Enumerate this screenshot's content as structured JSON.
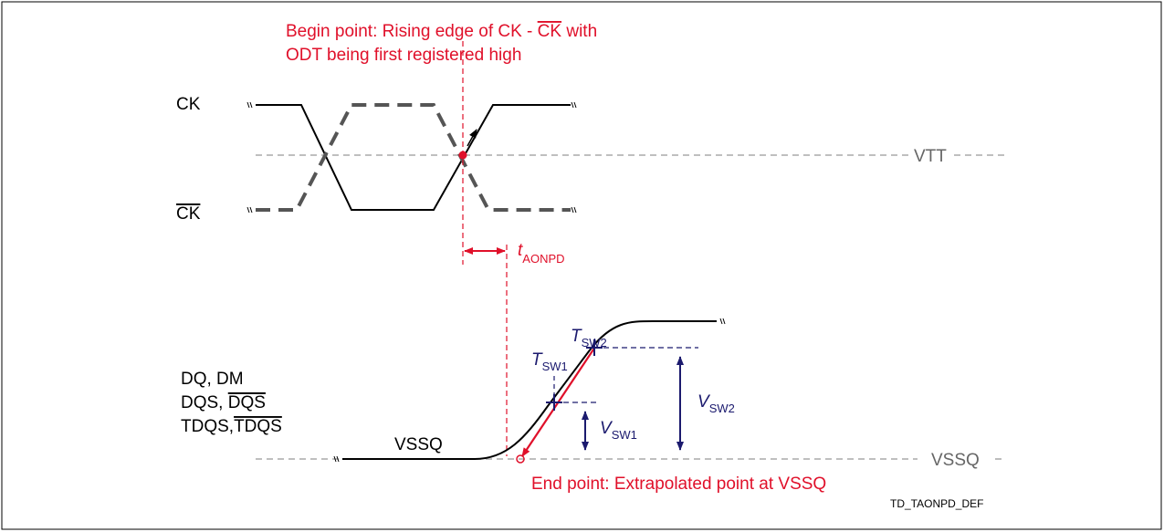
{
  "begin_point": {
    "line1": [
      "Begin point: Rising edge of CK - ",
      "CK",
      " with"
    ],
    "line2": "ODT being first registered high"
  },
  "signals": {
    "ck": "CK",
    "ck_bar": "CK",
    "dq_dm": "DQ, DM",
    "dqs": [
      "DQS, ",
      "DQS"
    ],
    "tdqs": [
      "TDQS,",
      "TDQS"
    ],
    "vssq_low": "VSSQ"
  },
  "levels": {
    "vtt": "VTT",
    "vssq": "VSSQ"
  },
  "timing": {
    "t": "t",
    "t_sub": "AONPD",
    "tsw2": "T",
    "tsw2_sub": "SW2",
    "tsw1": "T",
    "tsw1_sub": "SW1",
    "vsw1": "V",
    "vsw1_sub": "SW1",
    "vsw2": "V",
    "vsw2_sub": "SW2"
  },
  "end_point": "End point: Extrapolated point at VSSQ",
  "figure_id": "TD_TAONPD_DEF"
}
